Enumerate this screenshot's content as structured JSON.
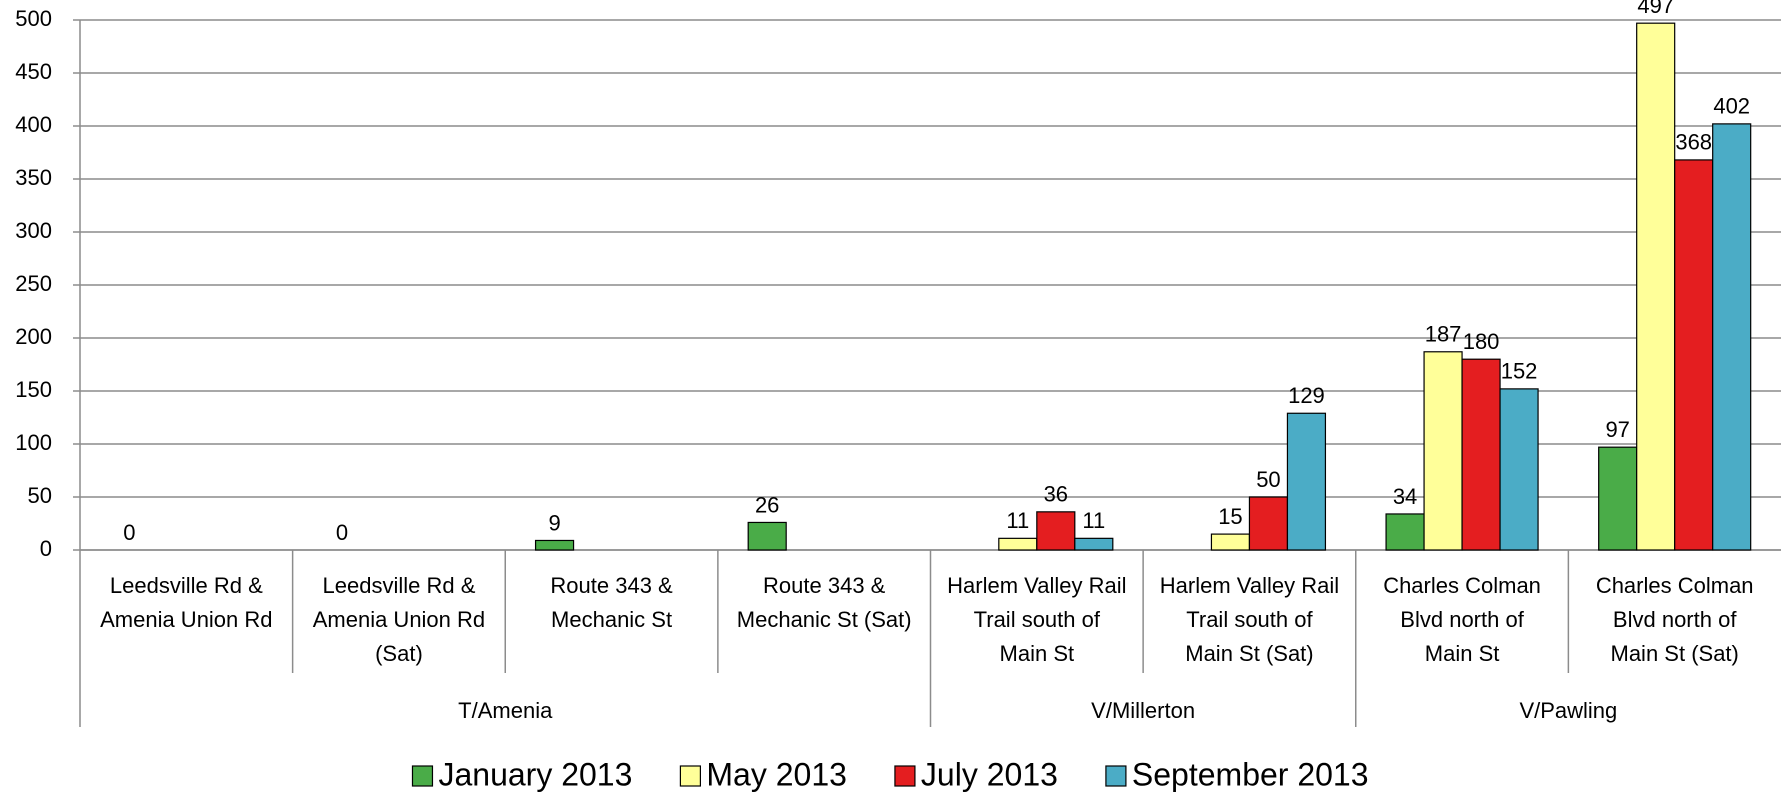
{
  "chart_data": {
    "type": "bar",
    "groups": [
      {
        "name": "T/Amenia",
        "categories": [
          [
            "Leedsville Rd &",
            "Amenia Union Rd"
          ],
          [
            "Leedsville Rd &",
            "Amenia Union Rd",
            "(Sat)"
          ],
          [
            "Route 343 &",
            "Mechanic St"
          ],
          [
            "Route 343 &",
            "Mechanic St (Sat)"
          ]
        ]
      },
      {
        "name": "V/Millerton",
        "categories": [
          [
            "Harlem Valley Rail",
            "Trail south of",
            "Main St"
          ],
          [
            "Harlem Valley Rail",
            "Trail south of",
            "Main St (Sat)"
          ]
        ]
      },
      {
        "name": "V/Pawling",
        "categories": [
          [
            "Charles Colman",
            "Blvd north of",
            "Main St"
          ],
          [
            "Charles Colman",
            "Blvd north of",
            "Main St (Sat)"
          ]
        ]
      }
    ],
    "series": [
      {
        "name": "January 2013",
        "color": "#4aac48",
        "values": [
          0,
          0,
          9,
          26,
          null,
          null,
          34,
          97
        ]
      },
      {
        "name": "May 2013",
        "color": "#ffff99",
        "values": [
          null,
          null,
          null,
          null,
          11,
          15,
          187,
          497
        ]
      },
      {
        "name": "July 2013",
        "color": "#e41e20",
        "values": [
          null,
          null,
          null,
          null,
          36,
          50,
          180,
          368
        ]
      },
      {
        "name": "September 2013",
        "color": "#4bacc6",
        "values": [
          null,
          null,
          null,
          null,
          11,
          129,
          152,
          402
        ]
      }
    ],
    "ylim": [
      0,
      500
    ],
    "yticks": [
      0,
      50,
      100,
      150,
      200,
      250,
      300,
      350,
      400,
      450,
      500
    ],
    "grid": true
  }
}
